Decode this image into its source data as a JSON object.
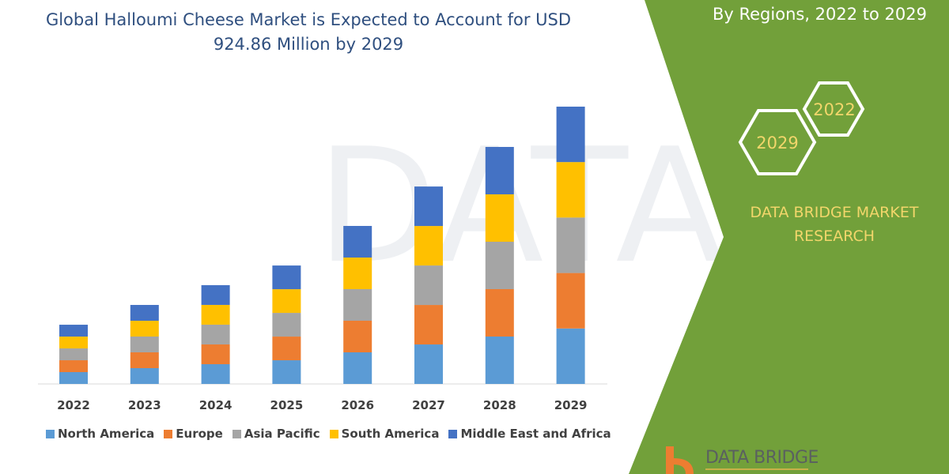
{
  "header": {
    "title_line1": "Global Halloumi Cheese Market is Expected to Account for USD",
    "title_line2": "924.86 Million by 2029",
    "subtitle": "By Regions, 2022 to 2029"
  },
  "badges": {
    "hex_2022": "2022",
    "hex_2029": "2029"
  },
  "brand": {
    "line1": "DATA BRIDGE MARKET",
    "line2": "RESEARCH",
    "logo_text": "DATA BRIDGE"
  },
  "colors": {
    "panel_green": "#72A03A",
    "brand_text": "#F2D66B",
    "title": "#2F4F7F"
  },
  "chart_data": {
    "type": "bar",
    "stacked": true,
    "title": "Global Halloumi Cheese Market is Expected to Account for USD 924.86 Million by 2029",
    "categories": [
      "2022",
      "2023",
      "2024",
      "2025",
      "2026",
      "2027",
      "2028",
      "2029"
    ],
    "series": [
      {
        "name": "North America",
        "color": "#5B9BD5",
        "values": [
          39.5,
          52.7,
          65.9,
          79.0,
          105.4,
          131.7,
          158.1,
          185.0
        ]
      },
      {
        "name": "Europe",
        "color": "#ED7D31",
        "values": [
          39.5,
          52.7,
          65.9,
          79.0,
          105.4,
          131.7,
          158.1,
          185.0
        ]
      },
      {
        "name": "Asia Pacific",
        "color": "#A5A5A5",
        "values": [
          39.5,
          52.7,
          65.9,
          79.0,
          105.4,
          131.7,
          158.1,
          185.0
        ]
      },
      {
        "name": "South America",
        "color": "#FFC000",
        "values": [
          39.5,
          52.7,
          65.9,
          79.0,
          105.4,
          131.7,
          158.1,
          185.0
        ]
      },
      {
        "name": "Middle East and Africa",
        "color": "#4472C4",
        "values": [
          39.5,
          52.7,
          65.9,
          79.0,
          105.4,
          131.7,
          158.1,
          184.9
        ]
      }
    ],
    "ylim": [
      0,
      924.86
    ],
    "grid": false,
    "legend_position": "bottom"
  }
}
